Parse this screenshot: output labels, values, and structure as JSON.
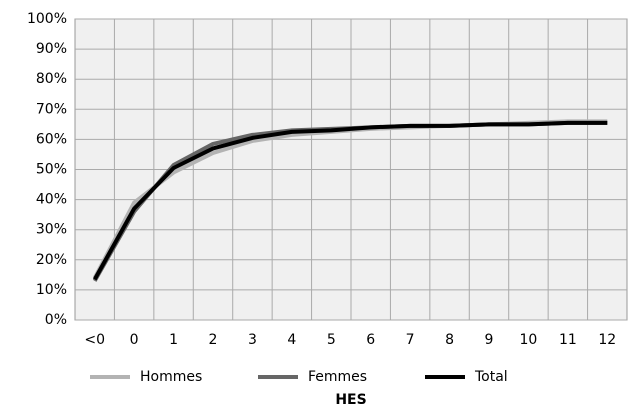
{
  "chart_data": {
    "type": "line",
    "title": "HES",
    "categories": [
      "<0",
      "0",
      "1",
      "2",
      "3",
      "4",
      "5",
      "6",
      "7",
      "8",
      "9",
      "10",
      "11",
      "12"
    ],
    "series": [
      {
        "name": "Hommes",
        "color": "#b3b3b3",
        "values": [
          14,
          39,
          49,
          55.5,
          59.5,
          61.5,
          62.5,
          63.5,
          64,
          64.5,
          65,
          65.5,
          66,
          66
        ]
      },
      {
        "name": "Femmes",
        "color": "#666666",
        "values": [
          13,
          36,
          51.5,
          58.5,
          61.5,
          63,
          63.5,
          64,
          64.5,
          64.5,
          65,
          65,
          65.5,
          65.5
        ]
      },
      {
        "name": "Total",
        "color": "#000000",
        "values": [
          13.5,
          37,
          50.5,
          57,
          60.5,
          62.5,
          63,
          64,
          64.5,
          64.5,
          65,
          65,
          65.5,
          65.5
        ]
      }
    ],
    "ylim": [
      0,
      100
    ],
    "yticks": [
      {
        "value": 0,
        "label": "0%"
      },
      {
        "value": 10,
        "label": "10%"
      },
      {
        "value": 20,
        "label": "20%"
      },
      {
        "value": 30,
        "label": "30%"
      },
      {
        "value": 40,
        "label": "40%"
      },
      {
        "value": 50,
        "label": "50%"
      },
      {
        "value": 60,
        "label": "60%"
      },
      {
        "value": 70,
        "label": "70%"
      },
      {
        "value": 80,
        "label": "80%"
      },
      {
        "value": 90,
        "label": "90%"
      },
      {
        "value": 100,
        "label": "100%"
      }
    ],
    "grid": true
  }
}
